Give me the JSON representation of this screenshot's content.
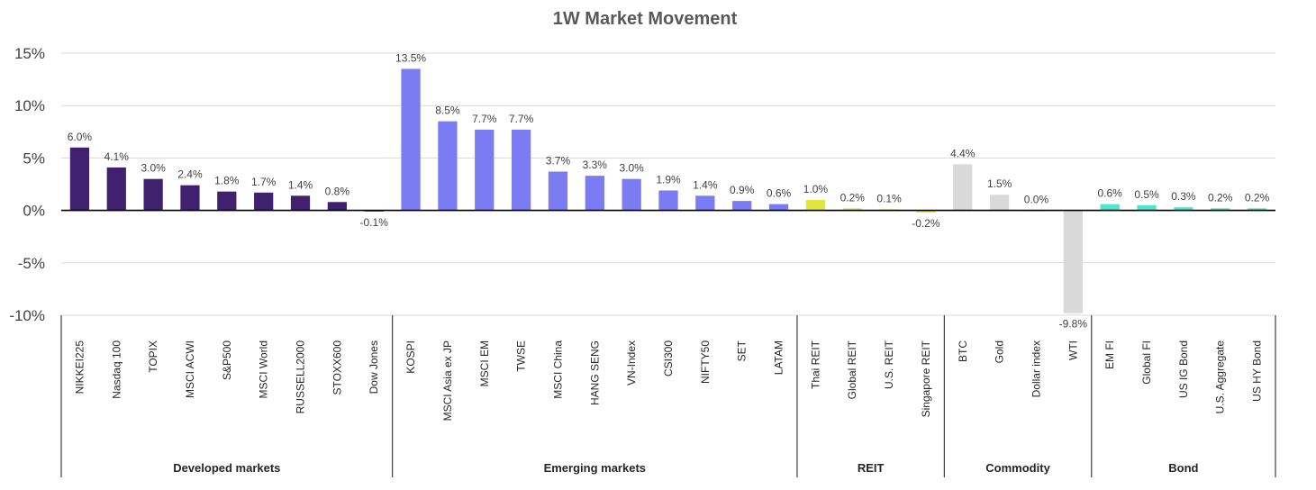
{
  "chart_data": {
    "type": "bar",
    "title": "1W Market Movement",
    "ylim": [
      -10,
      15
    ],
    "y_ticks": [
      "15%",
      "10%",
      "5%",
      "0%",
      "-5%",
      "-10%"
    ],
    "grid": true,
    "legend": "none",
    "groups": [
      {
        "name": "Developed  markets",
        "color": "#3f2170",
        "categories": [
          "NIKKEI225",
          "Nasdaq 100",
          "TOPIX",
          "MSCI ACWI",
          "S&P500",
          "MSCI World",
          "RUSSELL2000",
          "STOXX600",
          "Dow Jones"
        ],
        "values": [
          6.0,
          4.1,
          3.0,
          2.4,
          1.8,
          1.7,
          1.4,
          0.8,
          -0.1
        ],
        "labels": [
          "6.0%",
          "4.1%",
          "3.0%",
          "2.4%",
          "1.8%",
          "1.7%",
          "1.4%",
          "0.8%",
          "-0.1%"
        ]
      },
      {
        "name": "Emerging markets",
        "color": "#7b7bf2",
        "categories": [
          "KOSPI",
          "MSCI Asia ex JP",
          "MSCI EM",
          "TWSE",
          "MSCI China",
          "HANG SENG",
          "VN-Index",
          "CSI300",
          "NIFTY50",
          "SET",
          "LATAM"
        ],
        "values": [
          13.5,
          8.5,
          7.7,
          7.7,
          3.7,
          3.3,
          3.0,
          1.9,
          1.4,
          0.9,
          0.6
        ],
        "labels": [
          "13.5%",
          "8.5%",
          "7.7%",
          "7.7%",
          "3.7%",
          "3.3%",
          "3.0%",
          "1.9%",
          "1.4%",
          "0.9%",
          "0.6%"
        ]
      },
      {
        "name": "REIT",
        "color": "#e3e63a",
        "categories": [
          "Thai REIT",
          "Global REIT",
          "U.S. REIT",
          "Singapore REIT"
        ],
        "values": [
          1.0,
          0.2,
          0.1,
          -0.2
        ],
        "labels": [
          "1.0%",
          "0.2%",
          "0.1%",
          "-0.2%"
        ]
      },
      {
        "name": "Commodity",
        "color": "#d9d9d9",
        "categories": [
          "BTC",
          "Gold",
          "Dollar index",
          "WTI"
        ],
        "values": [
          4.4,
          1.5,
          0.0,
          -9.8
        ],
        "labels": [
          "4.4%",
          "1.5%",
          "0.0%",
          "-9.8%"
        ]
      },
      {
        "name": "Bond",
        "color": "#4ee6d2",
        "categories": [
          "EM FI",
          "Global FI",
          "US IG Bond",
          "U.S. Aggregate",
          "US HY Bond"
        ],
        "values": [
          0.6,
          0.5,
          0.3,
          0.2,
          0.2
        ],
        "labels": [
          "0.6%",
          "0.5%",
          "0.3%",
          "0.2%",
          "0.2%"
        ]
      }
    ]
  }
}
